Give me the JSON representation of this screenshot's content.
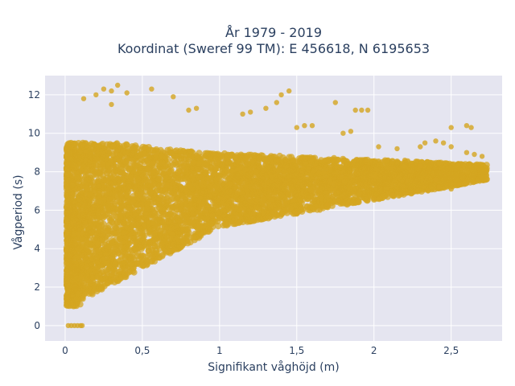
{
  "chart_data": {
    "type": "scatter",
    "title_line1": "År 1979 - 2019",
    "title_line2": "Koordinat (Sweref 99 TM): E 456618, N 6195653",
    "xlabel": "Signifikant våghöjd (m)",
    "ylabel": "Vågperiod (s)",
    "xlim": [
      -0.13,
      2.83
    ],
    "ylim": [
      -0.8,
      13.0
    ],
    "x_ticks": [
      0,
      0.5,
      1,
      1.5,
      2,
      2.5
    ],
    "x_tick_labels": [
      "0",
      "0,5",
      "1",
      "1,5",
      "2",
      "2,5"
    ],
    "y_ticks": [
      0,
      2,
      4,
      6,
      8,
      10,
      12
    ],
    "y_tick_labels": [
      "0",
      "2",
      "4",
      "6",
      "8",
      "10",
      "12"
    ],
    "grid": true,
    "colors": {
      "marker": "#d4a520",
      "plot_bg": "#e5e5f0",
      "grid": "#ffffff"
    },
    "series": [
      {
        "points": [
          [
            0.02,
            0
          ],
          [
            0.04,
            0
          ],
          [
            0.06,
            0
          ],
          [
            0.08,
            0
          ],
          [
            0.1,
            0
          ],
          [
            0.11,
            0
          ],
          [
            0.25,
            12.3
          ],
          [
            0.3,
            12.2
          ],
          [
            0.34,
            12.5
          ],
          [
            0.2,
            12.0
          ],
          [
            0.4,
            12.1
          ],
          [
            0.56,
            12.3
          ],
          [
            0.12,
            11.8
          ],
          [
            0.7,
            11.9
          ],
          [
            0.3,
            11.5
          ],
          [
            0.8,
            11.2
          ],
          [
            0.85,
            11.3
          ],
          [
            1.15,
            11.0
          ],
          [
            1.2,
            11.1
          ],
          [
            1.3,
            11.3
          ],
          [
            1.37,
            11.6
          ],
          [
            1.4,
            12.0
          ],
          [
            1.45,
            12.2
          ],
          [
            1.75,
            11.6
          ],
          [
            1.88,
            11.2
          ],
          [
            1.92,
            11.2
          ],
          [
            1.96,
            11.2
          ],
          [
            1.5,
            10.3
          ],
          [
            1.55,
            10.4
          ],
          [
            1.6,
            10.4
          ],
          [
            1.8,
            10.0
          ],
          [
            1.85,
            10.1
          ],
          [
            2.5,
            10.3
          ],
          [
            2.6,
            10.4
          ],
          [
            2.63,
            10.3
          ],
          [
            2.03,
            9.3
          ],
          [
            2.15,
            9.2
          ],
          [
            2.3,
            9.3
          ],
          [
            2.33,
            9.5
          ],
          [
            2.4,
            9.6
          ],
          [
            2.45,
            9.5
          ],
          [
            2.5,
            9.3
          ],
          [
            2.6,
            9.0
          ],
          [
            2.65,
            8.9
          ],
          [
            2.7,
            8.8
          ],
          [
            2.2,
            8.6
          ],
          [
            2.3,
            8.3
          ],
          [
            2.4,
            7.6
          ],
          [
            2.5,
            7.1
          ],
          [
            2.55,
            7.3
          ],
          [
            2.35,
            7.0
          ],
          [
            2.42,
            7.2
          ],
          [
            2.12,
            6.8
          ],
          [
            2.0,
            6.6
          ],
          [
            1.7,
            6.3
          ],
          [
            1.65,
            6.0
          ],
          [
            1.5,
            5.8
          ]
        ]
      }
    ]
  }
}
